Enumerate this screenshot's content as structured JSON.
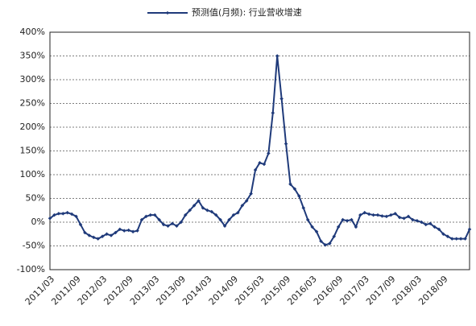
{
  "chart_data": {
    "type": "line",
    "categories": [
      "2011/03",
      null,
      null,
      null,
      null,
      null,
      "2011/09",
      null,
      null,
      null,
      null,
      null,
      "2012/03",
      null,
      null,
      null,
      null,
      null,
      "2012/09",
      null,
      null,
      null,
      null,
      null,
      "2013/03",
      null,
      null,
      null,
      null,
      null,
      "2013/09",
      null,
      null,
      null,
      null,
      null,
      "2014/03",
      null,
      null,
      null,
      null,
      null,
      "2014/09",
      null,
      null,
      null,
      null,
      null,
      "2015/03",
      null,
      null,
      null,
      null,
      null,
      "2015/09",
      null,
      null,
      null,
      null,
      null,
      "2016/03",
      null,
      null,
      null,
      null,
      null,
      "2016/09",
      null,
      null,
      null,
      null,
      null,
      "2017/03",
      null,
      null,
      null,
      null,
      null,
      "2017/09",
      null,
      null,
      null,
      null,
      null,
      "2018/03",
      null,
      null,
      null,
      null,
      null,
      "2018/09",
      null,
      null,
      null,
      null,
      null,
      null
    ],
    "series": [
      {
        "name": "预测值(月频): 行业营收增速",
        "color": "#1f3a7a",
        "values": [
          8,
          15,
          18,
          18,
          20,
          17,
          12,
          -5,
          -22,
          -28,
          -32,
          -35,
          -30,
          -25,
          -28,
          -22,
          -15,
          -18,
          -17,
          -20,
          -18,
          5,
          12,
          15,
          15,
          5,
          -5,
          -8,
          -3,
          -8,
          0,
          15,
          25,
          35,
          45,
          30,
          25,
          22,
          15,
          5,
          -8,
          5,
          15,
          20,
          35,
          45,
          60,
          110,
          125,
          122,
          145,
          230,
          350,
          260,
          165,
          80,
          70,
          55,
          30,
          5,
          -10,
          -20,
          -40,
          -48,
          -45,
          -30,
          -10,
          5,
          3,
          5,
          -10,
          15,
          20,
          17,
          15,
          15,
          13,
          12,
          15,
          18,
          10,
          8,
          12,
          5,
          3,
          0,
          -5,
          -3,
          -10,
          -15,
          -25,
          -30,
          -35,
          -35,
          -35,
          -35,
          -15
        ]
      }
    ],
    "ylim": [
      -100,
      400
    ],
    "yticks": [
      {
        "value": -100,
        "label": "-100%"
      },
      {
        "value": -50,
        "label": "-50%"
      },
      {
        "value": 0,
        "label": "0%"
      },
      {
        "value": 50,
        "label": "50%"
      },
      {
        "value": 100,
        "label": "100%"
      },
      {
        "value": 150,
        "label": "150%"
      },
      {
        "value": 200,
        "label": "200%"
      },
      {
        "value": 250,
        "label": "250%"
      },
      {
        "value": 300,
        "label": "300%"
      },
      {
        "value": 350,
        "label": "350%"
      },
      {
        "value": 400,
        "label": "400%"
      }
    ],
    "grid": true
  }
}
